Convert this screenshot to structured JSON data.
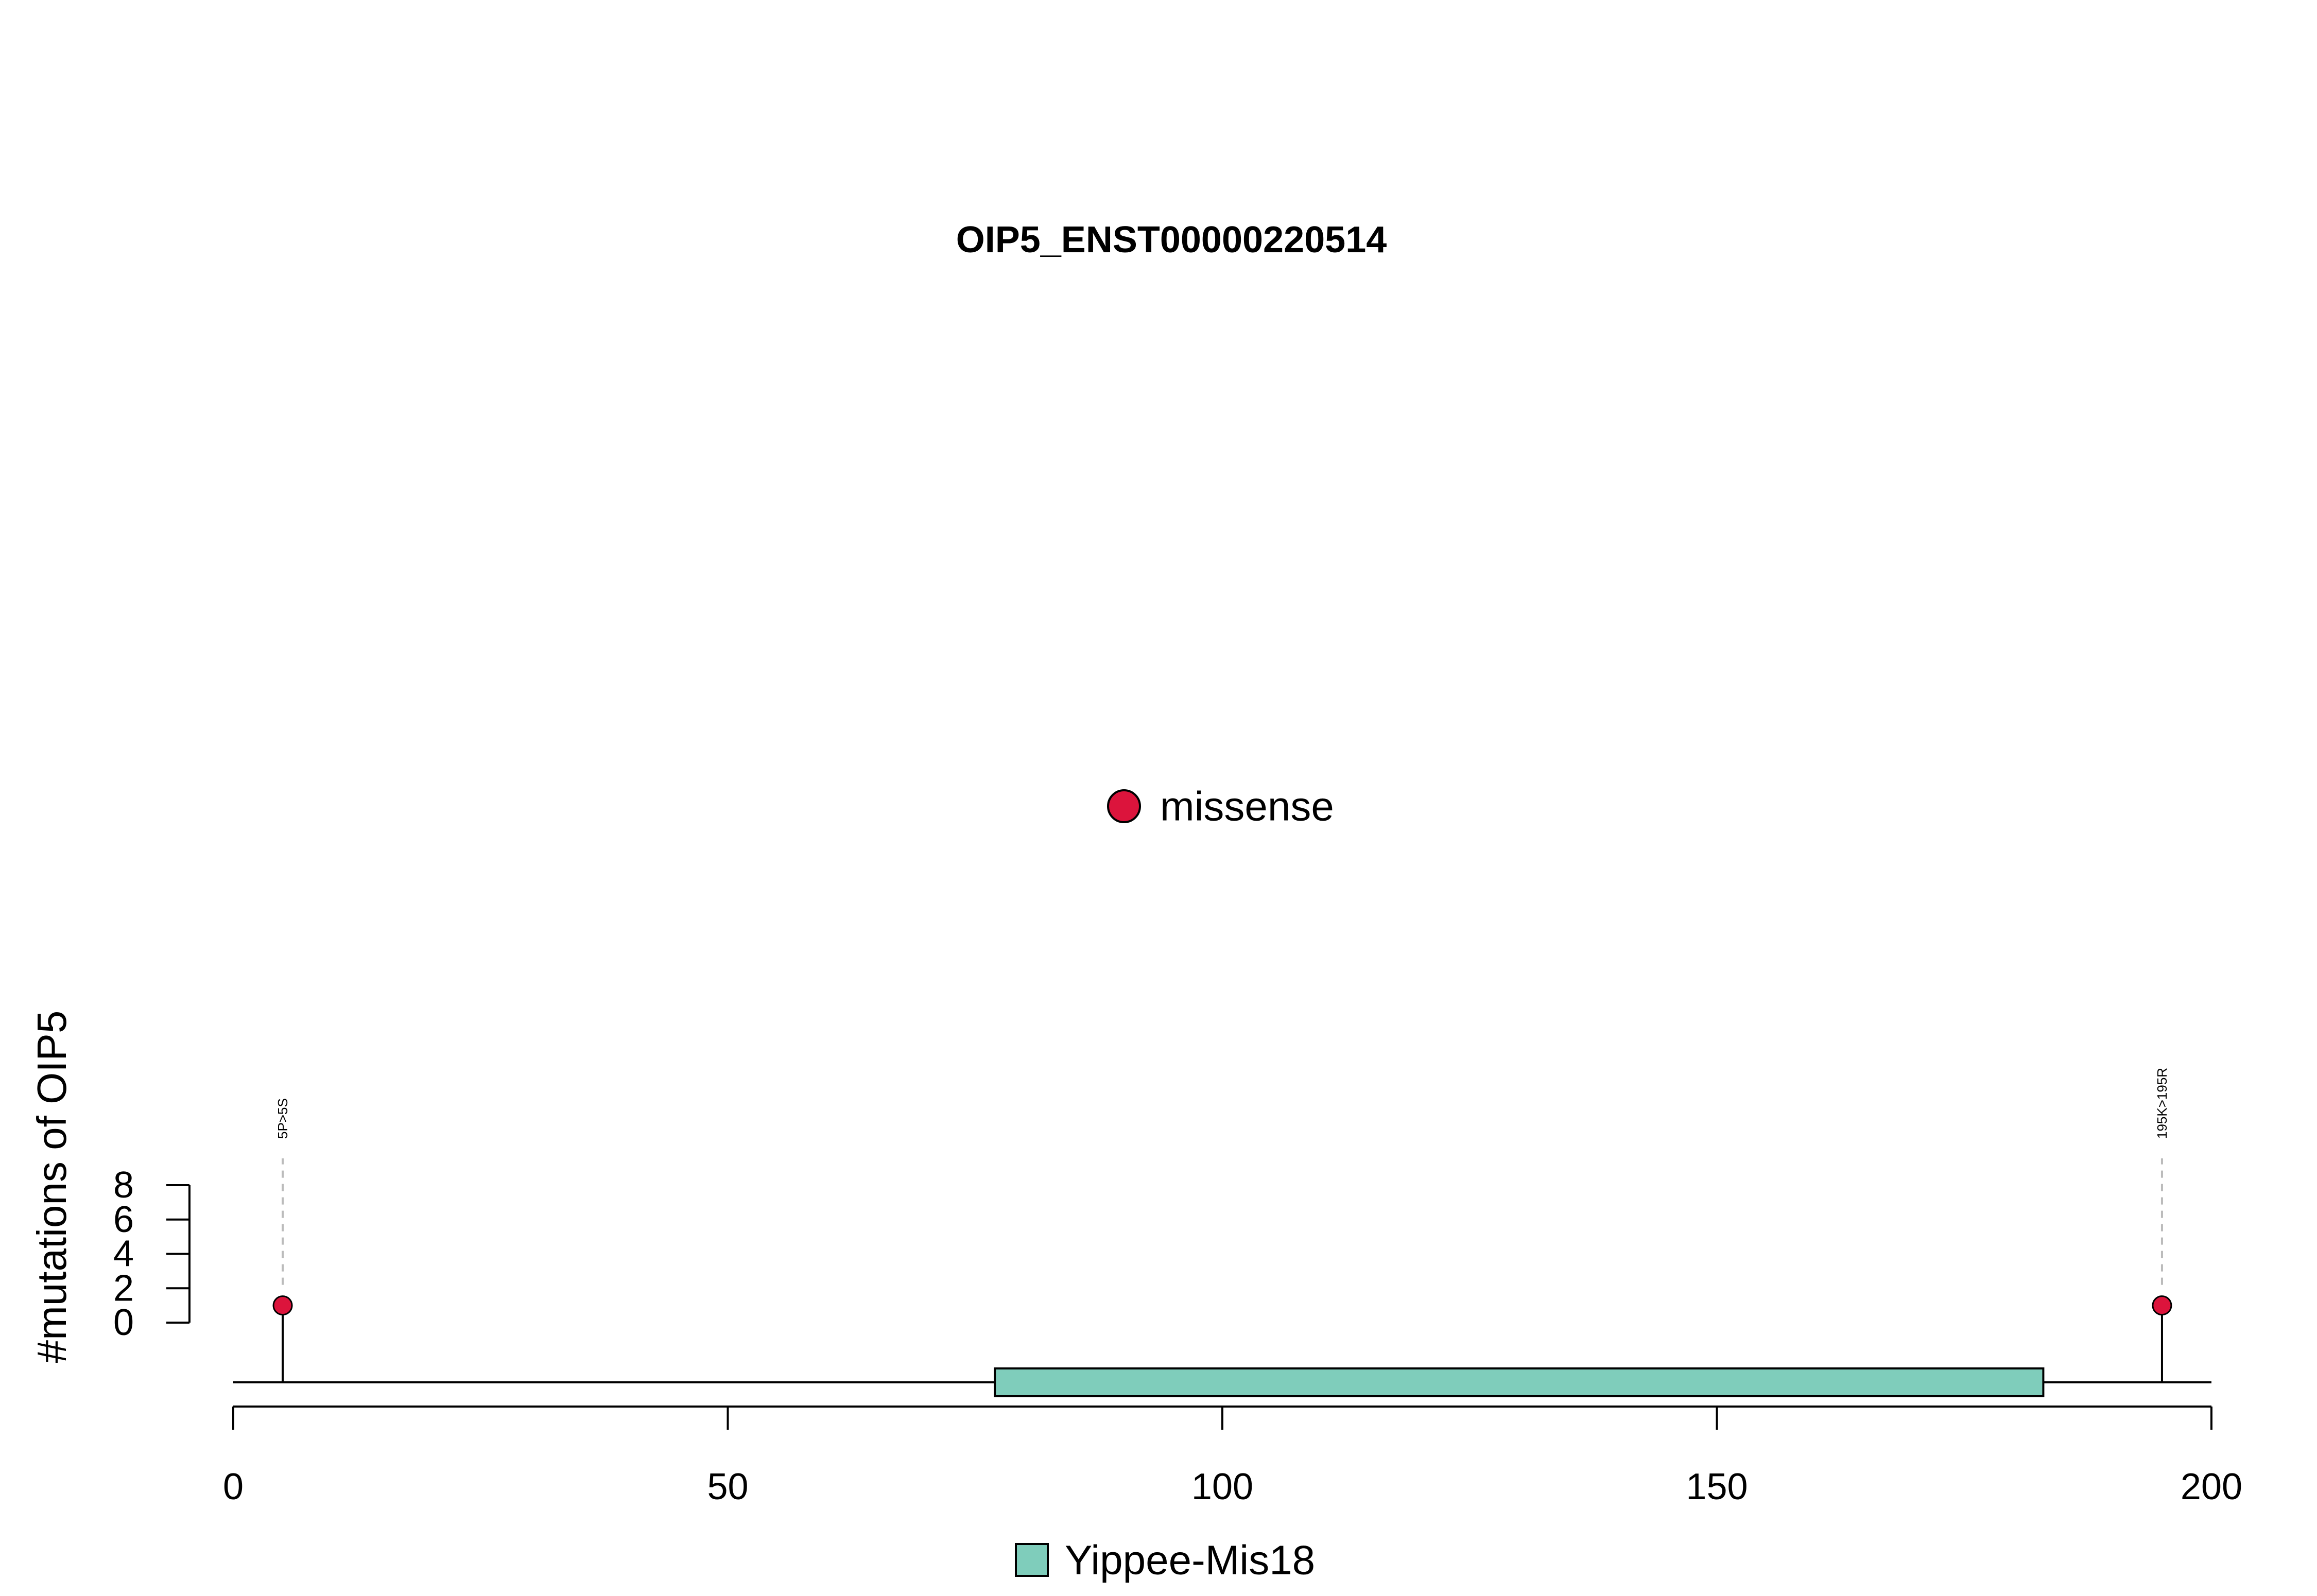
{
  "chart_data": {
    "type": "lollipop",
    "title": "OIP5_ENST00000220514",
    "xlabel": "",
    "ylabel": "#mutations of OIP5",
    "xlim": [
      0,
      200
    ],
    "ylim": [
      0,
      8
    ],
    "xticks": [
      0,
      50,
      100,
      150,
      200
    ],
    "yticks": [
      0,
      2,
      4,
      6,
      8
    ],
    "protein_length": 200,
    "mutations": [
      {
        "position": 5,
        "count": 1,
        "label": "5P>5S",
        "type": "missense"
      },
      {
        "position": 195,
        "count": 1,
        "label": "195K>195R",
        "type": "missense"
      }
    ],
    "domains": [
      {
        "name": "Yippee-Mis18",
        "start": 77,
        "end": 183,
        "color": "#7fcdbb"
      }
    ],
    "mutation_legend": [
      {
        "label": "missense",
        "color": "#dc143c"
      }
    ],
    "domain_legend": [
      {
        "label": "Yippee-Mis18",
        "color": "#7fcdbb"
      }
    ]
  }
}
